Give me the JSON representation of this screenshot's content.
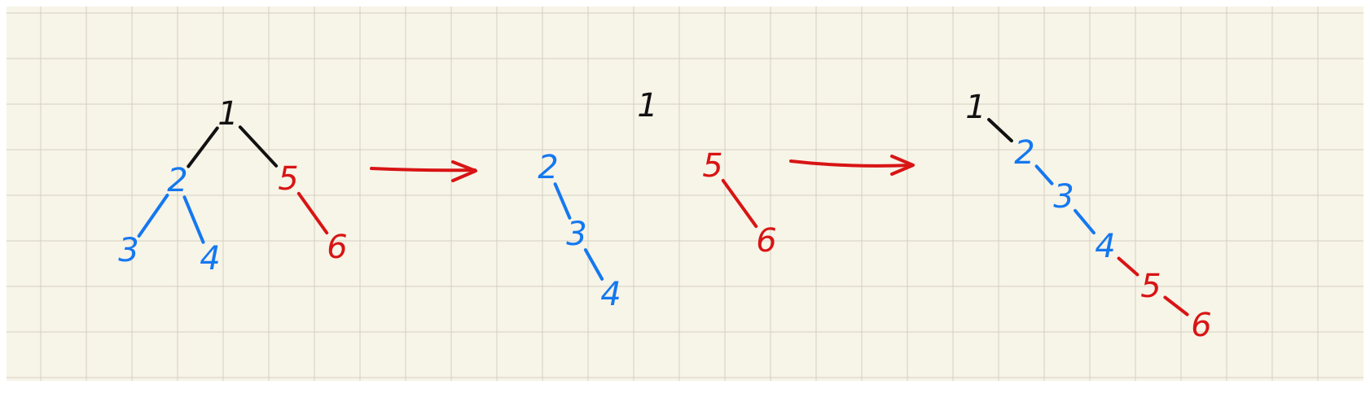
{
  "colors": {
    "paper": "#f7f4e8",
    "grid": "#d4d0c0",
    "root": "#111111",
    "left_subtree": "#1478f0",
    "right_subtree": "#d81414",
    "arrow": "#d81414"
  },
  "stages": [
    {
      "name": "original-tree",
      "nodes": [
        {
          "id": "1",
          "label": "1",
          "group": "root"
        },
        {
          "id": "2",
          "label": "2",
          "group": "left_subtree"
        },
        {
          "id": "3",
          "label": "3",
          "group": "left_subtree"
        },
        {
          "id": "4",
          "label": "4",
          "group": "left_subtree"
        },
        {
          "id": "5",
          "label": "5",
          "group": "right_subtree"
        },
        {
          "id": "6",
          "label": "6",
          "group": "right_subtree"
        }
      ],
      "edges": [
        [
          "1",
          "2"
        ],
        [
          "1",
          "5"
        ],
        [
          "2",
          "3"
        ],
        [
          "2",
          "4"
        ],
        [
          "5",
          "6"
        ]
      ]
    },
    {
      "name": "flattened-subtrees",
      "nodes": [
        {
          "id": "1",
          "label": "1",
          "group": "root"
        },
        {
          "id": "2",
          "label": "2",
          "group": "left_subtree"
        },
        {
          "id": "3",
          "label": "3",
          "group": "left_subtree"
        },
        {
          "id": "4",
          "label": "4",
          "group": "left_subtree"
        },
        {
          "id": "5",
          "label": "5",
          "group": "right_subtree"
        },
        {
          "id": "6",
          "label": "6",
          "group": "right_subtree"
        }
      ],
      "edges": [
        [
          "2",
          "3"
        ],
        [
          "3",
          "4"
        ],
        [
          "5",
          "6"
        ]
      ]
    },
    {
      "name": "flattened-list",
      "nodes": [
        {
          "id": "1",
          "label": "1",
          "group": "root"
        },
        {
          "id": "2",
          "label": "2",
          "group": "left_subtree"
        },
        {
          "id": "3",
          "label": "3",
          "group": "left_subtree"
        },
        {
          "id": "4",
          "label": "4",
          "group": "left_subtree"
        },
        {
          "id": "5",
          "label": "5",
          "group": "right_subtree"
        },
        {
          "id": "6",
          "label": "6",
          "group": "right_subtree"
        }
      ],
      "edges": [
        [
          "1",
          "2"
        ],
        [
          "2",
          "3"
        ],
        [
          "3",
          "4"
        ],
        [
          "4",
          "5"
        ],
        [
          "5",
          "6"
        ]
      ]
    }
  ]
}
